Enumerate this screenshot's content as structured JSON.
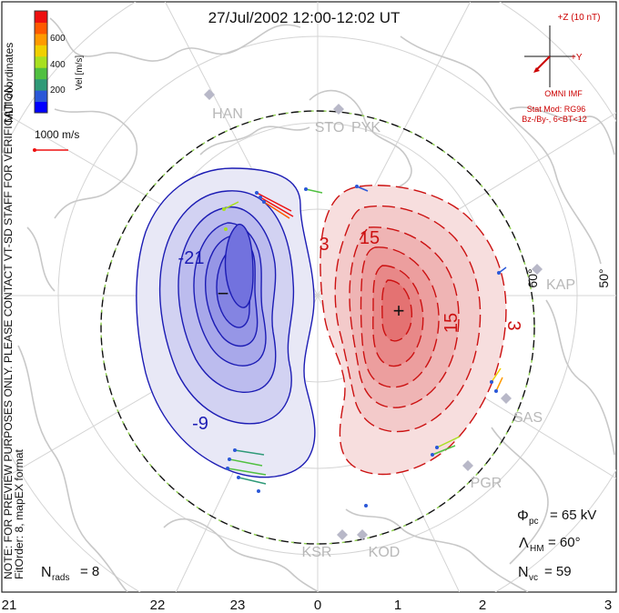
{
  "title": "27/Jul/2002 12:00-12:02 UT",
  "side_notes": {
    "coords": "MLT coordinates",
    "preview": "NOTE: FOR PREVIEW PURPOSES ONLY. PLEASE CONTACT VT-SD STAFF FOR VERIFICATION.",
    "fit": "FitOrder: 8, mapEX format"
  },
  "colorbar": {
    "label": "Vel [m/s]",
    "ticks": [
      "600",
      "400",
      "200"
    ],
    "colors": [
      "#0000ff",
      "#2b58d8",
      "#2f9a78",
      "#50c040",
      "#a8e020",
      "#f0d000",
      "#ff9a00",
      "#ff5a00",
      "#ee1010"
    ]
  },
  "reference_vector": "1000 m/s",
  "imf": {
    "z_label": "+Z (10 nT)",
    "y_label": "+Y",
    "source": "OMNI IMF",
    "model": "Stat Mod: RG96",
    "condition": "Bz-/By-, 6<BT<12"
  },
  "stations": [
    "HAN",
    "STO",
    "PYK",
    "KAP",
    "SAS",
    "PGR",
    "KSR",
    "KOD"
  ],
  "latitude_labels": [
    "60°",
    "50°"
  ],
  "contour_labels": [
    "-21",
    "-9",
    "3",
    "15",
    "15",
    "3"
  ],
  "minimum_marker": "−",
  "maximum_marker": "+",
  "stats": {
    "phi_symbol": "Φ",
    "phi_sub": "pc",
    "phi_value": "= 65 kV",
    "lambda_symbol": "Λ",
    "lambda_sub": "HM",
    "lambda_value": "= 60°",
    "nvc_symbol": "N",
    "nvc_sub": "vc",
    "nvc_value": "= 59",
    "nrads_symbol": "N",
    "nrads_sub": "rads",
    "nrads_value": "= 8"
  },
  "mlt_ticks": [
    "21",
    "22",
    "23",
    "0",
    "1",
    "2",
    "3"
  ],
  "colors": {
    "negative_potential": "#1c1cb4",
    "positive_potential": "#cc1111",
    "land_outline": "#c8c8c8",
    "grid": "#d2d2d2"
  }
}
